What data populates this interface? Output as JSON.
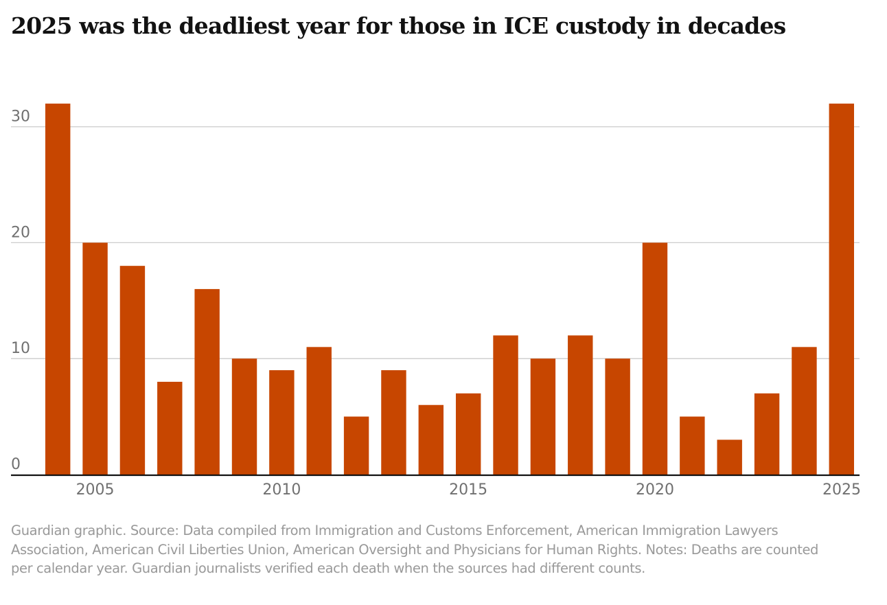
{
  "colors": {
    "bar": "#c74600",
    "grid": "#cccccc",
    "axis": "#121212",
    "tick_text": "#707070",
    "footnote": "#999999"
  },
  "chart_data": {
    "type": "bar",
    "title": "2025 was the deadliest year for those in ICE custody in decades",
    "xlabel": "",
    "ylabel": "",
    "categories": [
      2004,
      2005,
      2006,
      2007,
      2008,
      2009,
      2010,
      2011,
      2012,
      2013,
      2014,
      2015,
      2016,
      2017,
      2018,
      2019,
      2020,
      2021,
      2022,
      2023,
      2024,
      2025
    ],
    "values": [
      32,
      20,
      18,
      8,
      16,
      10,
      9,
      11,
      5,
      9,
      6,
      7,
      12,
      10,
      12,
      10,
      20,
      5,
      3,
      7,
      11,
      32
    ],
    "ylim": [
      0,
      32
    ],
    "yticks": [
      0,
      10,
      20,
      30
    ],
    "ytick_labels": [
      "0",
      "10",
      "20",
      "30"
    ],
    "xticks": [
      2005,
      2010,
      2015,
      2020,
      2025
    ],
    "xtick_labels": [
      "2005",
      "2010",
      "2015",
      "2020",
      "2025"
    ],
    "grid": true,
    "legend": "none"
  },
  "footnote": "Guardian graphic. Source: Data compiled from Immigration and Customs Enforcement, American Immigration Lawyers Association, American Civil Liberties Union, American Oversight and Physicians for Human Rights. Notes: Deaths are counted per calendar year. Guardian journalists verified each death when the sources had different counts."
}
